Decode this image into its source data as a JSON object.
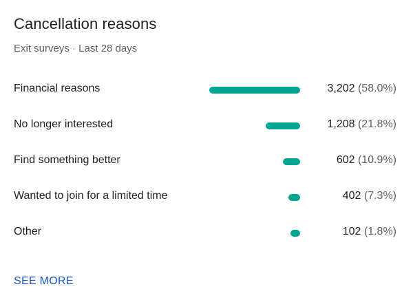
{
  "header": {
    "title": "Cancellation reasons",
    "subtitle": "Exit surveys · Last 28 days"
  },
  "bar_color": "#00a693",
  "link_color": "#1a56c4",
  "reasons": [
    {
      "label": "Financial reasons",
      "count": "3,202",
      "percent": "(58.0%)",
      "share": 58.0
    },
    {
      "label": "No longer interested",
      "count": "1,208",
      "percent": "(21.8%)",
      "share": 21.8
    },
    {
      "label": "Find something better",
      "count": "602",
      "percent": "(10.9%)",
      "share": 10.9
    },
    {
      "label": "Wanted to join for a limited time",
      "count": "402",
      "percent": "(7.3%)",
      "share": 7.3
    },
    {
      "label": "Other",
      "count": "102",
      "percent": "(1.8%)",
      "share": 1.8
    }
  ],
  "footer": {
    "see_more_label": "SEE MORE"
  }
}
